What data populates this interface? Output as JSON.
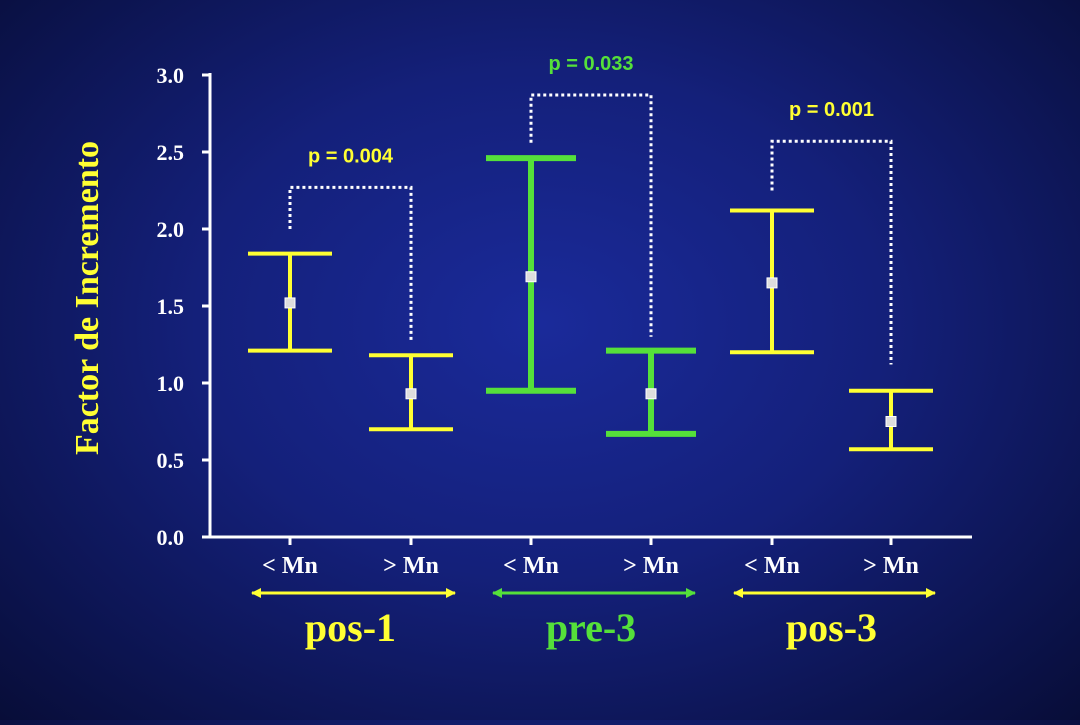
{
  "colors": {
    "pos": "#ffff33",
    "pre": "#55e03a",
    "axis": "#ffffff",
    "bracket": "#ffffff"
  },
  "chart_data": {
    "type": "errorbar",
    "ylabel": "Factor de Incremento",
    "ylim": [
      0,
      3.0
    ],
    "yticks": [
      "0.0",
      "0.5",
      "1.0",
      "1.5",
      "2.0",
      "2.5",
      "3.0"
    ],
    "ytick_values": [
      0,
      0.5,
      1.0,
      1.5,
      2.0,
      2.5,
      3.0
    ],
    "categories": [
      "< Mn",
      "> Mn",
      "< Mn",
      "> Mn",
      "< Mn",
      "> Mn"
    ],
    "groups": [
      {
        "name": "pos-1",
        "color": "pos",
        "points": [
          {
            "label": "< Mn",
            "mean": 1.52,
            "lower": 1.21,
            "upper": 1.84
          },
          {
            "label": "> Mn",
            "mean": 0.93,
            "lower": 0.7,
            "upper": 1.18
          }
        ]
      },
      {
        "name": "pre-3",
        "color": "pre",
        "points": [
          {
            "label": "< Mn",
            "mean": 1.69,
            "lower": 0.95,
            "upper": 2.46
          },
          {
            "label": "> Mn",
            "mean": 0.93,
            "lower": 0.67,
            "upper": 1.21
          }
        ]
      },
      {
        "name": "pos-3",
        "color": "pos",
        "points": [
          {
            "label": "< Mn",
            "mean": 1.65,
            "lower": 1.2,
            "upper": 2.12
          },
          {
            "label": "> Mn",
            "mean": 0.75,
            "lower": 0.57,
            "upper": 0.95
          }
        ]
      }
    ],
    "comparisons": [
      {
        "group": "pos-1",
        "p": "p = 0.004",
        "color": "pos",
        "bracket_y": 2.27,
        "left_end": 2.0,
        "right_end": 1.28
      },
      {
        "group": "pre-3",
        "p": "p = 0.033",
        "color": "pre",
        "bracket_y": 2.87,
        "left_end": 2.56,
        "right_end": 1.3
      },
      {
        "group": "pos-3",
        "p": "p = 0.001",
        "color": "pos",
        "bracket_y": 2.57,
        "left_end": 2.25,
        "right_end": 1.12
      }
    ]
  }
}
